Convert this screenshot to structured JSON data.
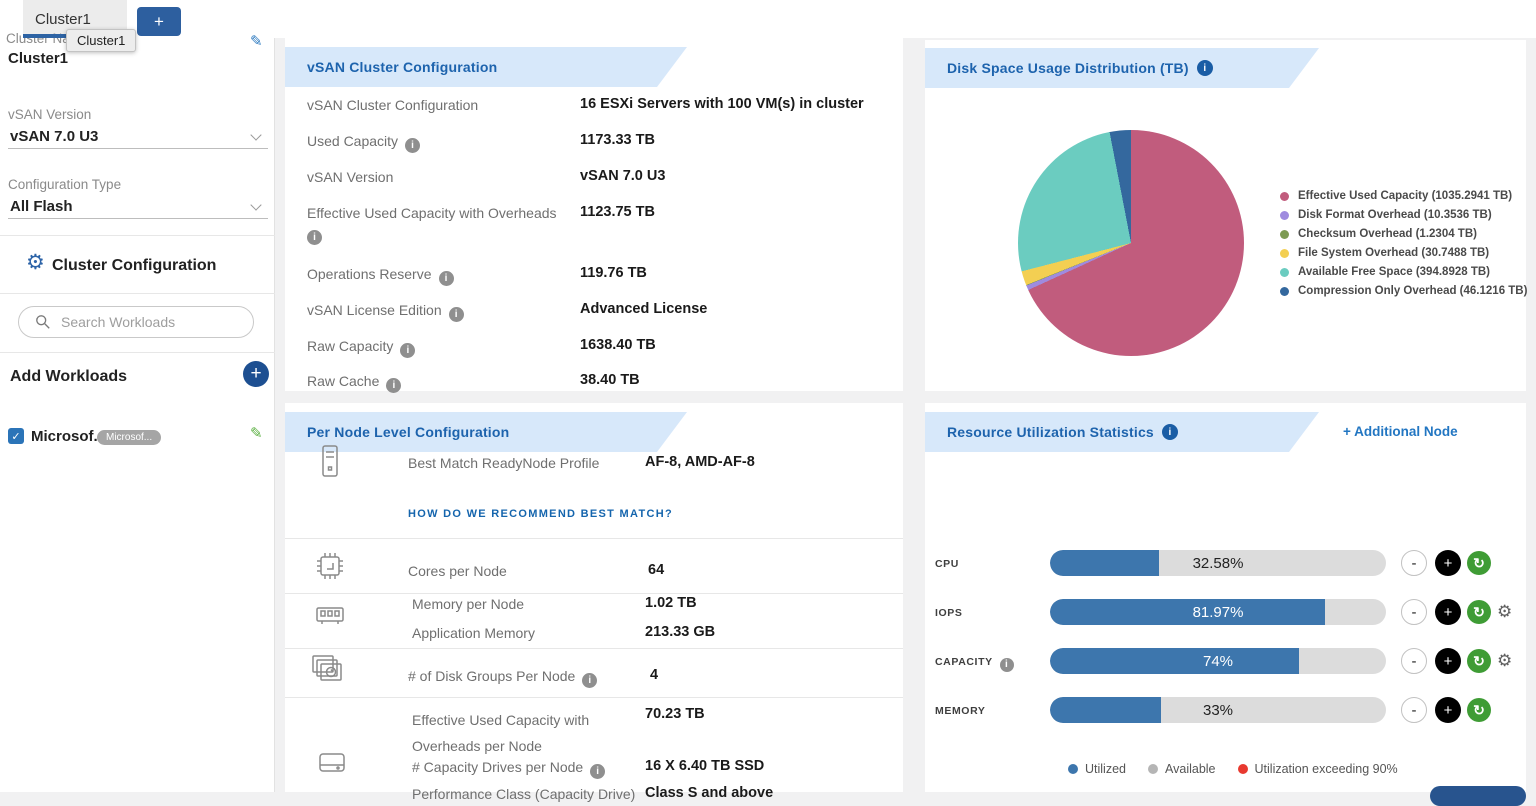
{
  "topbar": {
    "tab_label": "Cluster1",
    "add_tab_label": "+",
    "tooltip": "Cluster1"
  },
  "sidebar": {
    "cluster_name_label": "Cluster Name",
    "cluster_name_value": "Cluster1",
    "vsan_version_label": "vSAN Version",
    "vsan_version_value": "vSAN 7.0 U3",
    "config_type_label": "Configuration Type",
    "config_type_value": "All Flash",
    "cluster_config_label": "Cluster Configuration",
    "search_placeholder": "Search Workloads",
    "add_workloads_label": "Add Workloads",
    "workload_name": "Microsof...",
    "workload_badge": "Microsof..."
  },
  "cluster_card": {
    "title": "vSAN Cluster Configuration",
    "rows": [
      {
        "label": "vSAN Cluster Configuration",
        "value": "16 ESXi Servers with 100 VM(s) in cluster"
      },
      {
        "label": "Used Capacity",
        "value": "1173.33 TB"
      },
      {
        "label": "vSAN Version",
        "value": "vSAN 7.0 U3"
      },
      {
        "label": "Effective Used Capacity with Overheads",
        "value": "1123.75 TB"
      },
      {
        "label": "Operations Reserve",
        "value": "119.76 TB"
      },
      {
        "label": "vSAN License Edition",
        "value": "Advanced License"
      },
      {
        "label": "Raw Capacity",
        "value": "1638.40 TB"
      },
      {
        "label": "Raw Cache",
        "value": "38.40 TB"
      }
    ]
  },
  "disk_card": {
    "title": "Disk Space Usage Distribution (TB)"
  },
  "node_card": {
    "title": "Per Node Level Configuration",
    "best_match_label": "Best Match ReadyNode Profile",
    "best_match_value": "AF-8, AMD-AF-8",
    "recommend_link": "HOW DO WE RECOMMEND BEST MATCH?",
    "cores_label": "Cores per Node",
    "cores_value": "64",
    "memory_label": "Memory per Node",
    "memory_value": "1.02 TB",
    "app_memory_label": "Application Memory",
    "app_memory_value": "213.33 GB",
    "disk_groups_label": "# of Disk Groups Per Node",
    "disk_groups_value": "4",
    "euc_label": "Effective Used Capacity with Overheads per Node",
    "euc_value": "70.23 TB",
    "capacity_drives_label": "# Capacity Drives per Node",
    "capacity_drives_value": "16 X 6.40 TB SSD",
    "perf_class_label": "Performance Class (Capacity Drive)",
    "perf_class_value": "Class S and above"
  },
  "resource_card": {
    "title": "Resource Utilization Statistics",
    "additional_node_link": "+ Additional Node"
  },
  "chart_data": [
    {
      "type": "pie",
      "title": "Disk Space Usage Distribution (TB)",
      "labels": [
        "Effective Used Capacity",
        "Disk Format Overhead",
        "Checksum Overhead",
        "File System Overhead",
        "Available Free Space",
        "Compression Only Overhead"
      ],
      "values": [
        1035.2941,
        10.3536,
        1.2304,
        30.7488,
        394.8928,
        46.1216
      ],
      "unit": "TB",
      "colors": [
        "#c15c7d",
        "#9f8bdf",
        "#7d9b53",
        "#f3cf52",
        "#6bccc0",
        "#34689e"
      ],
      "legend_labels": [
        "Effective Used Capacity (1035.2941 TB)",
        "Disk Format Overhead (10.3536 TB)",
        "Checksum Overhead (1.2304 TB)",
        "File System Overhead (30.7488 TB)",
        "Available Free Space (394.8928 TB)",
        "Compression Only Overhead (46.1216 TB)"
      ],
      "legend_position": "right",
      "start_angle_deg": 0,
      "direction": "clockwise"
    },
    {
      "type": "bar",
      "title": "Resource Utilization Statistics",
      "categories": [
        "CPU",
        "IOPS",
        "CAPACITY",
        "MEMORY"
      ],
      "values": [
        32.58,
        81.97,
        74,
        33
      ],
      "value_labels": [
        "32.58%",
        "81.97%",
        "74%",
        "33%"
      ],
      "xlim": [
        0,
        100
      ],
      "unit": "%",
      "bar_color": "#3d76ad",
      "track_color": "#dcdcdc",
      "info_flags": [
        false,
        false,
        true,
        false
      ],
      "gear_flags": [
        false,
        true,
        true,
        false
      ],
      "legend": [
        "Utilized",
        "Available",
        "Utilization exceeding 90%"
      ],
      "legend_colors": [
        "#3d76ad",
        "#b5b5b5",
        "#e8392f"
      ]
    }
  ]
}
